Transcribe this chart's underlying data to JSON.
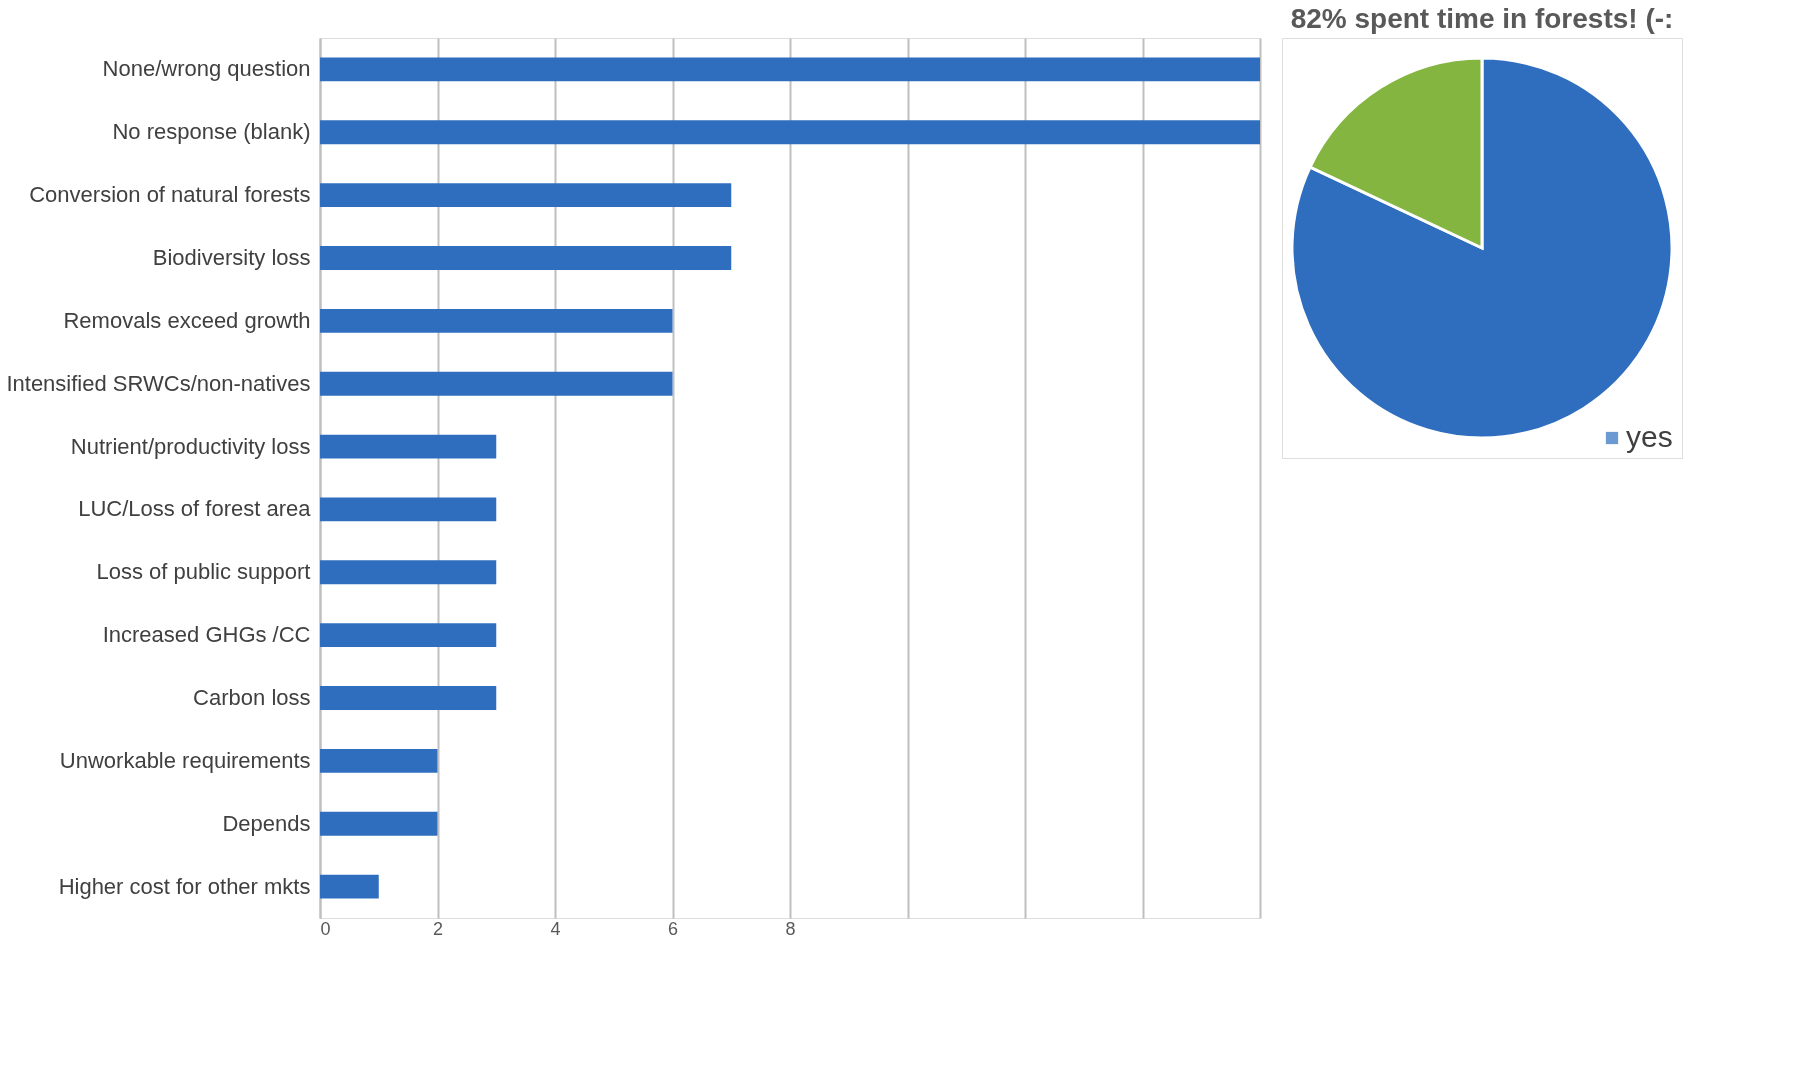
{
  "chart_data": [
    {
      "type": "bar",
      "orientation": "horizontal",
      "categories": [
        "None/wrong question",
        "No response (blank)",
        "Conversion of natural forests",
        "Biodiversity loss",
        "Removals exceed growth",
        "Intensified SRWCs/non-natives",
        "Nutrient/productivity loss",
        "LUC/Loss of forest area",
        "Loss of public support",
        "Increased GHGs /CC",
        "Carbon loss",
        "Unworkable requirements",
        "Depends",
        "Higher cost for other mkts"
      ],
      "values": [
        16,
        16,
        7,
        7,
        6,
        6,
        3,
        3,
        3,
        3,
        3,
        2,
        2,
        1
      ],
      "color": "#2f6ebf",
      "xlim": [
        0,
        16
      ],
      "xticks": [
        0,
        2,
        4,
        6,
        8,
        {
          "value": 10,
          "label": null
        },
        {
          "value": 12,
          "label": null
        },
        {
          "value": 14,
          "label": null
        },
        {
          "value": 16,
          "label": null
        }
      ],
      "grid": "x"
    },
    {
      "type": "pie",
      "title": "82% spent time in forests!  (-:",
      "categories": [
        "yes",
        null
      ],
      "values": [
        82,
        18
      ],
      "colors": [
        "#2f6ebf",
        "#84b540"
      ],
      "legend": "bottom right"
    }
  ]
}
